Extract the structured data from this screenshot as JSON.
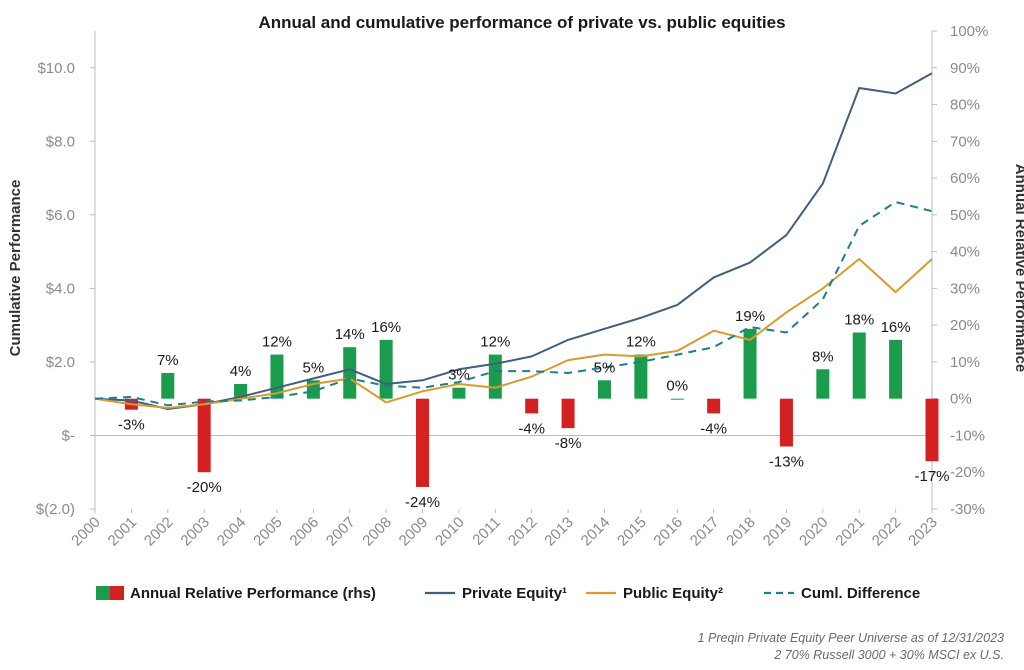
{
  "chart_data": {
    "type": "bar",
    "title": "Annual and cumulative performance of private vs. public equities",
    "ylabel_left": "Cumulative Performance",
    "ylabel_right": "Annual Relative Performance",
    "left_axis": {
      "range": [
        -2.0,
        11.0
      ],
      "ticks": [
        -2,
        0,
        2,
        4,
        6,
        8,
        10
      ],
      "tick_labels": [
        "$(2.0)",
        "$-",
        "$2.0",
        "$4.0",
        "$6.0",
        "$8.0",
        "$10.0"
      ]
    },
    "right_axis": {
      "range": [
        -30,
        100
      ],
      "ticks": [
        -30,
        -20,
        -10,
        0,
        10,
        20,
        30,
        40,
        50,
        60,
        70,
        80,
        90,
        100
      ],
      "tick_labels": [
        "-30%",
        "-20%",
        "-10%",
        "0%",
        "10%",
        "20%",
        "30%",
        "40%",
        "50%",
        "60%",
        "70%",
        "80%",
        "90%",
        "100%"
      ]
    },
    "categories": [
      "2000",
      "2001",
      "2002",
      "2003",
      "2004",
      "2005",
      "2006",
      "2007",
      "2008",
      "2009",
      "2010",
      "2011",
      "2012",
      "2013",
      "2014",
      "2015",
      "2016",
      "2017",
      "2018",
      "2019",
      "2020",
      "2021",
      "2022",
      "2023"
    ],
    "bar_series": {
      "name": "Annual Relative Performance (rhs)",
      "values": [
        null,
        -3,
        7,
        -20,
        4,
        12,
        5,
        14,
        16,
        -24,
        3,
        12,
        -4,
        -8,
        5,
        12,
        0,
        -4,
        19,
        -13,
        8,
        18,
        16,
        -17
      ],
      "labels": [
        "",
        "-3%",
        "7%",
        "-20%",
        "4%",
        "12%",
        "5%",
        "14%",
        "16%",
        "-24%",
        "3%",
        "12%",
        "-4%",
        "-8%",
        "5%",
        "12%",
        "0%",
        "-4%",
        "19%",
        "-13%",
        "8%",
        "18%",
        "16%",
        "-17%"
      ],
      "positive_color": "#1a9c4c",
      "negative_color": "#d42020"
    },
    "line_series": [
      {
        "name": "Private Equity¹",
        "color": "#3f5f7f",
        "dash": false,
        "values": [
          1.0,
          0.95,
          0.72,
          0.85,
          1.05,
          1.3,
          1.55,
          1.8,
          1.4,
          1.5,
          1.8,
          1.95,
          2.15,
          2.6,
          2.9,
          3.2,
          3.55,
          4.3,
          4.7,
          5.45,
          6.85,
          9.45,
          9.3,
          9.85
        ]
      },
      {
        "name": "Public Equity²",
        "color": "#d89b2c",
        "dash": false,
        "values": [
          1.0,
          0.85,
          0.75,
          0.85,
          1.0,
          1.15,
          1.4,
          1.55,
          0.9,
          1.2,
          1.4,
          1.3,
          1.6,
          2.05,
          2.2,
          2.15,
          2.3,
          2.85,
          2.6,
          3.35,
          4.0,
          4.8,
          3.9,
          4.8
        ]
      },
      {
        "name": "Cuml. Difference",
        "color": "#1b7f8e",
        "dash": true,
        "values": [
          1.0,
          1.05,
          0.82,
          0.92,
          0.95,
          1.05,
          1.2,
          1.55,
          1.35,
          1.3,
          1.45,
          1.75,
          1.75,
          1.7,
          1.85,
          2.0,
          2.2,
          2.4,
          2.95,
          2.8,
          3.7,
          5.7,
          6.35,
          6.1
        ]
      }
    ]
  },
  "legend": {
    "bars_label": "Annual Relative Performance (rhs)",
    "pe_label": "Private Equity¹",
    "pub_label": "Public Equity²",
    "diff_label": "Cuml. Difference"
  },
  "notes": {
    "note1": "1 Preqin Private Equity Peer Universe as of 12/31/2023",
    "note2": "2 70% Russell 3000 + 30% MSCI ex U.S."
  }
}
